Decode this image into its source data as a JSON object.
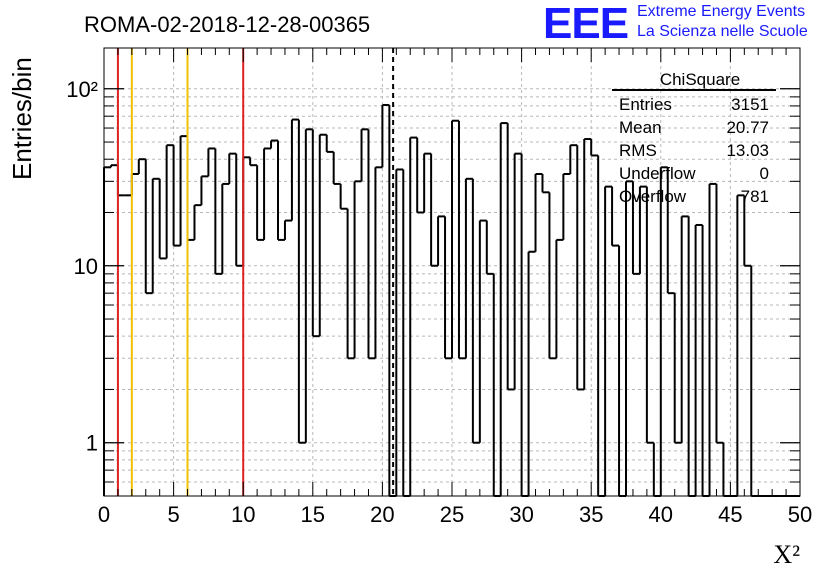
{
  "header": {
    "run_title": "ROMA-02-2018-12-28-00365",
    "logo": {
      "mark": "EEE",
      "line1": "Extreme Energy Events",
      "line2": "La Scienza nelle Scuole",
      "color": "#1a1aff"
    }
  },
  "chart_data": {
    "type": "histogram",
    "title": "ROMA-02-2018-12-28-00365",
    "xlabel": "X²",
    "ylabel": "Entries/bin",
    "xlim": [
      0,
      50
    ],
    "ylim_log": [
      0.5,
      170
    ],
    "yscale": "log",
    "grid": true,
    "bin_width": 0.5,
    "x_ticks": [
      "0",
      "5",
      "10",
      "15",
      "20",
      "25",
      "30",
      "35",
      "40",
      "45",
      "50"
    ],
    "y_ticks": [
      {
        "value": 1,
        "label": "1"
      },
      {
        "value": 10,
        "label": "10"
      },
      {
        "value": 100,
        "label": "10²"
      }
    ],
    "bin_contents": [
      36,
      37,
      25,
      25,
      33,
      40,
      7,
      31,
      11,
      48,
      13,
      54,
      14,
      22,
      32,
      46,
      9,
      29,
      43,
      10,
      41,
      37,
      14,
      46,
      51,
      14,
      18,
      67,
      1,
      59,
      4,
      55,
      44,
      29,
      21,
      3,
      30,
      59,
      3,
      36,
      81,
      0,
      35,
      0,
      53,
      20,
      43,
      10,
      19,
      3,
      66,
      3,
      31,
      1,
      18,
      9,
      0,
      64,
      2,
      43,
      0,
      12,
      33,
      26,
      3,
      14,
      33,
      48,
      2,
      52,
      42,
      0,
      28,
      13,
      0,
      30,
      9,
      28,
      1,
      0,
      36,
      7,
      1,
      19,
      0,
      17,
      0,
      29,
      1,
      0,
      0,
      25,
      10,
      0,
      0,
      0,
      0,
      0,
      0,
      0
    ],
    "vertical_lines": [
      {
        "x": 1,
        "color": "#dd2222",
        "style": "solid"
      },
      {
        "x": 2,
        "color": "#f2c100",
        "style": "solid"
      },
      {
        "x": 6,
        "color": "#f2c100",
        "style": "solid"
      },
      {
        "x": 10,
        "color": "#dd2222",
        "style": "solid"
      },
      {
        "x": 20.77,
        "color": "#000000",
        "style": "dashed"
      }
    ],
    "stats_box": {
      "title": "ChiSquare",
      "rows": [
        {
          "label": "Entries",
          "value": "3151"
        },
        {
          "label": "Mean",
          "value": "20.77"
        },
        {
          "label": "RMS",
          "value": "13.03"
        },
        {
          "label": "Underflow",
          "value": "0"
        },
        {
          "label": "Overflow",
          "value": "781"
        }
      ]
    }
  }
}
